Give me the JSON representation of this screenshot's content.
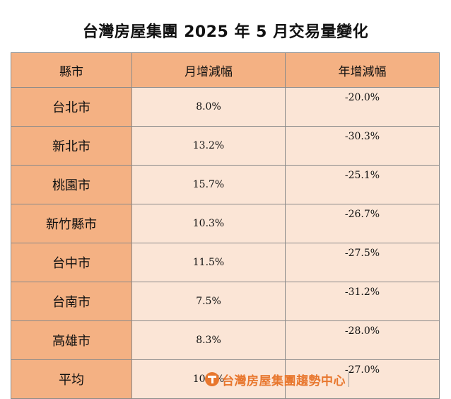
{
  "title": "台灣房屋集團 2025 年 5 月交易量變化",
  "table": {
    "headers": [
      "縣市",
      "月增減幅",
      "年增減幅"
    ],
    "rows": [
      {
        "city": "台北市",
        "mom": "8.0%",
        "yoy": "-20.0%"
      },
      {
        "city": "新北市",
        "mom": "13.2%",
        "yoy": "-30.3%"
      },
      {
        "city": "桃園市",
        "mom": "15.7%",
        "yoy": "-25.1%"
      },
      {
        "city": "新竹縣市",
        "mom": "10.3%",
        "yoy": "-26.7%"
      },
      {
        "city": "台中市",
        "mom": "11.5%",
        "yoy": "-27.5%"
      },
      {
        "city": "台南市",
        "mom": "7.5%",
        "yoy": "-31.2%"
      },
      {
        "city": "高雄市",
        "mom": "8.3%",
        "yoy": "-28.0%"
      },
      {
        "city": "平均",
        "mom": "10.6%",
        "yoy": "-27.0%"
      }
    ]
  },
  "logo": {
    "text": "台灣房屋集團趨勢中心",
    "icon": "taiwan-realty-logo-icon"
  },
  "colors": {
    "header_bg": "#f4b183",
    "cell_bg": "#fbe5d6",
    "border": "#8a8a8a",
    "logo_orange": "#e8772e"
  }
}
